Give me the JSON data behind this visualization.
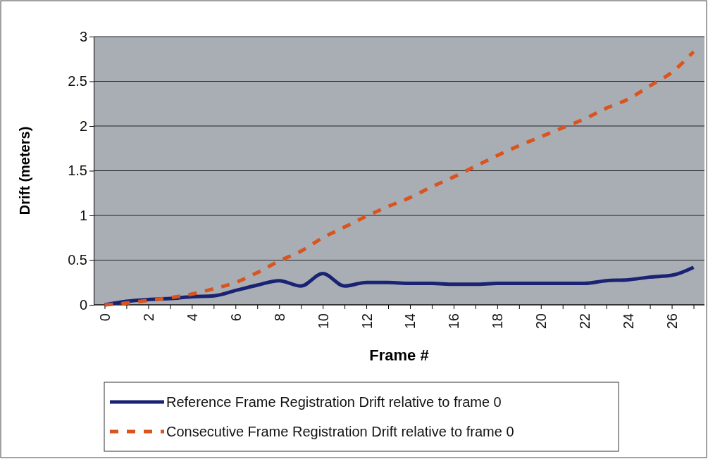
{
  "chart_data": {
    "type": "line",
    "xlabel": "Frame #",
    "ylabel": "Drift (meters)",
    "categories": [
      "0",
      null,
      "2",
      null,
      "4",
      null,
      "6",
      null,
      "8",
      null,
      "10",
      null,
      "12",
      null,
      "14",
      null,
      "16",
      null,
      "18",
      null,
      "20",
      null,
      "22",
      null,
      "24",
      null,
      "26",
      null
    ],
    "series": [
      {
        "name": "Reference Frame Registration Drift relative to frame 0",
        "color": "#1a2373",
        "line_style": "solid",
        "values": [
          0,
          0.04,
          0.06,
          0.07,
          0.09,
          0.1,
          0.16,
          0.22,
          0.27,
          0.21,
          0.35,
          0.21,
          0.25,
          0.25,
          0.24,
          0.24,
          0.23,
          0.23,
          0.24,
          0.24,
          0.24,
          0.24,
          0.24,
          0.27,
          0.28,
          0.31,
          0.33,
          0.42
        ]
      },
      {
        "name": "Consecutive Frame Registration Drift relative to frame 0",
        "color": "#d9541e",
        "line_style": "dashed",
        "values": [
          0,
          0.02,
          0.05,
          0.08,
          0.12,
          0.18,
          0.25,
          0.36,
          0.49,
          0.6,
          0.75,
          0.87,
          0.99,
          1.1,
          1.2,
          1.32,
          1.43,
          1.55,
          1.67,
          1.78,
          1.88,
          1.98,
          2.08,
          2.2,
          2.3,
          2.45,
          2.6,
          2.83
        ]
      }
    ],
    "ylim": [
      0,
      3
    ],
    "yticks": [
      0,
      0.5,
      1,
      1.5,
      2,
      2.5,
      3
    ],
    "grid": "y",
    "legend": "bottom",
    "marker": "none"
  }
}
